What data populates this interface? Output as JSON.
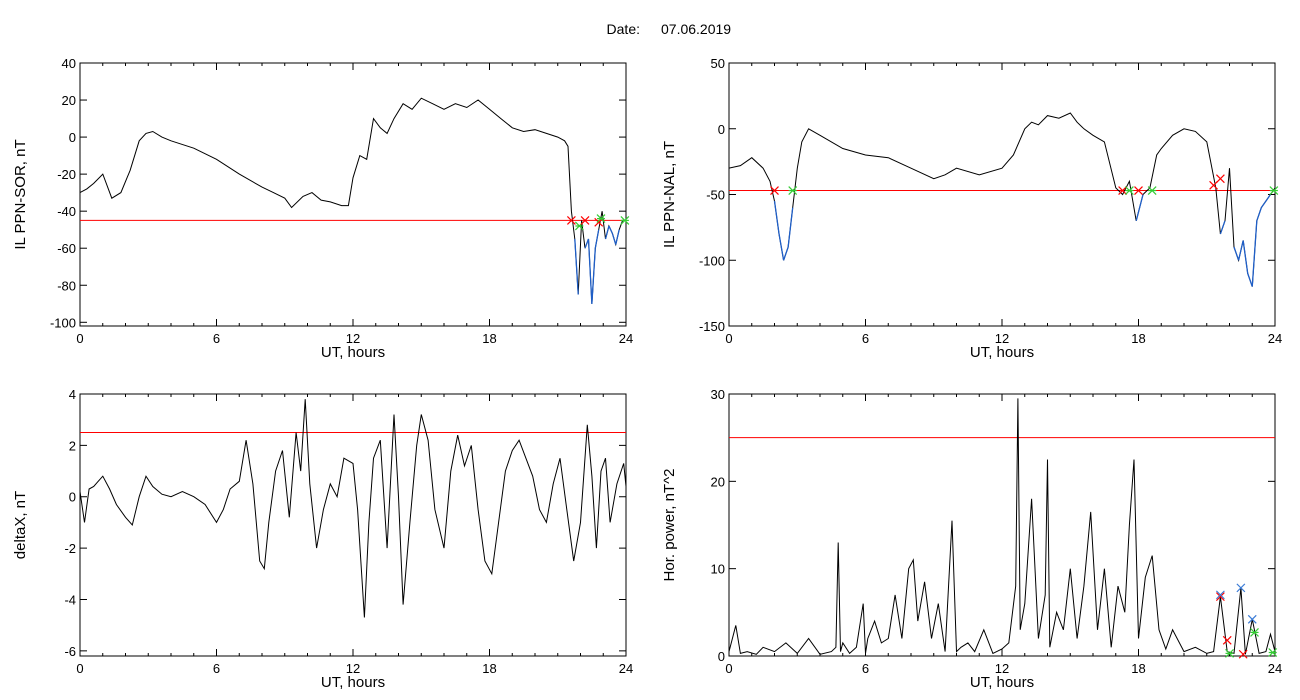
{
  "header": {
    "date_label": "Date:",
    "date_value": "07.06.2019"
  },
  "colors": {
    "trace": "#000000",
    "threshold": "#ff0000",
    "below": "#1f5fc8",
    "cross": "#ff0000",
    "exit": "#33cc33",
    "peak": "#3b7bd6"
  },
  "chart_data": [
    {
      "id": "p1",
      "type": "line",
      "xlabel": "UT, hours",
      "ylabel": "IL PPN-SOR, nT",
      "xlim": [
        0,
        24
      ],
      "ylim": [
        -102,
        40
      ],
      "xticks": [
        0,
        6,
        12,
        18,
        24
      ],
      "yticks": [
        -100,
        -80,
        -60,
        -40,
        -20,
        0,
        20,
        40
      ],
      "threshold": -45,
      "series": [
        {
          "x": [
            0,
            0.3,
            0.6,
            1.0,
            1.4,
            1.8,
            2.2,
            2.6,
            2.9,
            3.2,
            3.6,
            4.0,
            5.0,
            6.0,
            7.0,
            8.0,
            8.5,
            9.0,
            9.3,
            9.8,
            10.2,
            10.6,
            11.0,
            11.5,
            11.8,
            12.0,
            12.3,
            12.6,
            12.9,
            13.2,
            13.5,
            13.8,
            14.2,
            14.6,
            15.0,
            15.5,
            16.0,
            16.5,
            17.0,
            17.5,
            18.0,
            18.5,
            19.0,
            19.5,
            20.0,
            20.5,
            21.0,
            21.3,
            21.45,
            21.6,
            21.75,
            21.9,
            22.05,
            22.2,
            22.35,
            22.5,
            22.65,
            22.8,
            22.95,
            23.1,
            23.25,
            23.4,
            23.55,
            23.7,
            23.85,
            24.0
          ],
          "y": [
            -30,
            -28,
            -25,
            -20,
            -33,
            -30,
            -18,
            -2,
            2,
            3,
            0,
            -2,
            -6,
            -12,
            -20,
            -27,
            -30,
            -33,
            -38,
            -32,
            -30,
            -34,
            -35,
            -37,
            -37,
            -22,
            -10,
            -12,
            10,
            5,
            2,
            10,
            18,
            15,
            21,
            18,
            15,
            18,
            16,
            20,
            15,
            10,
            5,
            3,
            4,
            2,
            0,
            -2,
            -5,
            -40,
            -55,
            -85,
            -45,
            -60,
            -55,
            -90,
            -60,
            -50,
            -40,
            -55,
            -48,
            -52,
            -58,
            -50,
            -45,
            -45
          ]
        }
      ],
      "markers": [
        {
          "x": 21.6,
          "y": -45,
          "kind": "cross"
        },
        {
          "x": 21.95,
          "y": -48,
          "kind": "exit"
        },
        {
          "x": 22.2,
          "y": -45,
          "kind": "cross"
        },
        {
          "x": 22.8,
          "y": -46,
          "kind": "cross"
        },
        {
          "x": 22.9,
          "y": -44,
          "kind": "exit"
        },
        {
          "x": 23.95,
          "y": -45,
          "kind": "exit"
        }
      ]
    },
    {
      "id": "p2",
      "type": "line",
      "xlabel": "UT, hours",
      "ylabel": "IL PPN-NAL, nT",
      "xlim": [
        0,
        24
      ],
      "ylim": [
        -150,
        50
      ],
      "xticks": [
        0,
        6,
        12,
        18,
        24
      ],
      "yticks": [
        -150,
        -100,
        -50,
        0,
        50
      ],
      "threshold": -47,
      "series": [
        {
          "x": [
            0,
            0.5,
            1.0,
            1.5,
            1.8,
            2.0,
            2.2,
            2.4,
            2.6,
            2.8,
            3.0,
            3.2,
            3.5,
            4.0,
            5.0,
            6.0,
            7.0,
            8.0,
            9.0,
            9.5,
            10.0,
            11.0,
            12.0,
            12.5,
            13.0,
            13.3,
            13.6,
            14.0,
            14.5,
            15.0,
            15.3,
            15.6,
            16.0,
            16.5,
            17.0,
            17.3,
            17.6,
            17.9,
            18.2,
            18.5,
            18.8,
            19.0,
            19.5,
            20.0,
            20.5,
            21.0,
            21.4,
            21.6,
            21.8,
            22.0,
            22.2,
            22.4,
            22.6,
            22.8,
            23.0,
            23.2,
            23.4,
            23.6,
            23.8,
            24.0
          ],
          "y": [
            -30,
            -28,
            -22,
            -30,
            -40,
            -55,
            -80,
            -100,
            -90,
            -60,
            -30,
            -10,
            0,
            -5,
            -15,
            -20,
            -22,
            -30,
            -38,
            -35,
            -30,
            -35,
            -30,
            -20,
            0,
            5,
            3,
            10,
            8,
            12,
            5,
            0,
            -5,
            -10,
            -45,
            -50,
            -40,
            -70,
            -50,
            -45,
            -20,
            -15,
            -5,
            0,
            -2,
            -10,
            -45,
            -80,
            -70,
            -30,
            -90,
            -100,
            -85,
            -110,
            -120,
            -70,
            -60,
            -55,
            -50,
            -45
          ]
        }
      ],
      "markers": [
        {
          "x": 2.0,
          "y": -47,
          "kind": "cross"
        },
        {
          "x": 2.8,
          "y": -47,
          "kind": "exit"
        },
        {
          "x": 17.3,
          "y": -47,
          "kind": "cross"
        },
        {
          "x": 17.6,
          "y": -47,
          "kind": "exit"
        },
        {
          "x": 18.0,
          "y": -47,
          "kind": "cross"
        },
        {
          "x": 18.6,
          "y": -47,
          "kind": "exit"
        },
        {
          "x": 21.3,
          "y": -43,
          "kind": "cross"
        },
        {
          "x": 21.6,
          "y": -38,
          "kind": "cross"
        },
        {
          "x": 23.95,
          "y": -47,
          "kind": "exit"
        }
      ]
    },
    {
      "id": "p3",
      "type": "line",
      "xlabel": "UT, hours",
      "ylabel": "deltaX, nT",
      "xlim": [
        0,
        24
      ],
      "ylim": [
        -6.2,
        4
      ],
      "xticks": [
        0,
        6,
        12,
        18,
        24
      ],
      "yticks": [
        -6,
        -4,
        -2,
        0,
        2,
        4
      ],
      "threshold": 2.5,
      "series": [
        {
          "x": [
            0,
            0.2,
            0.4,
            0.6,
            0.8,
            1.0,
            1.3,
            1.6,
            2.0,
            2.3,
            2.6,
            2.9,
            3.2,
            3.6,
            4.0,
            4.5,
            5.0,
            5.5,
            6.0,
            6.3,
            6.6,
            7.0,
            7.3,
            7.6,
            7.9,
            8.1,
            8.3,
            8.6,
            8.9,
            9.2,
            9.5,
            9.7,
            9.9,
            10.1,
            10.4,
            10.7,
            11.0,
            11.3,
            11.6,
            12.0,
            12.2,
            12.5,
            12.7,
            12.9,
            13.2,
            13.5,
            13.8,
            14.0,
            14.2,
            14.5,
            14.8,
            15.0,
            15.3,
            15.6,
            16.0,
            16.3,
            16.6,
            16.9,
            17.2,
            17.5,
            17.8,
            18.1,
            18.4,
            18.7,
            19.0,
            19.3,
            19.6,
            19.9,
            20.2,
            20.5,
            20.8,
            21.1,
            21.4,
            21.7,
            22.0,
            22.3,
            22.5,
            22.7,
            22.9,
            23.1,
            23.3,
            23.6,
            23.9,
            24.0
          ],
          "y": [
            0.2,
            -1.0,
            0.3,
            0.4,
            0.6,
            0.8,
            0.3,
            -0.3,
            -0.8,
            -1.1,
            0.0,
            0.8,
            0.4,
            0.1,
            0.0,
            0.2,
            0.0,
            -0.3,
            -1.0,
            -0.5,
            0.3,
            0.6,
            2.2,
            0.5,
            -2.5,
            -2.8,
            -1.0,
            1.0,
            1.8,
            -0.8,
            2.5,
            1.0,
            3.8,
            0.5,
            -2.0,
            -0.5,
            0.5,
            0.0,
            1.5,
            1.3,
            -0.5,
            -4.7,
            -1.0,
            1.5,
            2.2,
            -2.0,
            3.2,
            0.0,
            -4.2,
            -1.0,
            2.0,
            3.2,
            2.2,
            -0.5,
            -2.0,
            1.0,
            2.4,
            1.2,
            2.0,
            -0.5,
            -2.5,
            -3.0,
            -1.0,
            1.0,
            1.8,
            2.2,
            1.5,
            0.8,
            -0.5,
            -1.0,
            0.5,
            1.5,
            -0.5,
            -2.5,
            -1.0,
            2.8,
            0.8,
            -2.0,
            1.0,
            1.5,
            -1.0,
            0.5,
            1.3,
            0.4
          ]
        }
      ],
      "markers": []
    },
    {
      "id": "p4",
      "type": "line",
      "xlabel": "UT, hours",
      "ylabel": "Hor. power, nT^2",
      "xlim": [
        0,
        24
      ],
      "ylim": [
        0,
        30
      ],
      "xticks": [
        0,
        6,
        12,
        18,
        24
      ],
      "yticks": [
        0,
        10,
        20,
        30
      ],
      "threshold": 25,
      "series": [
        {
          "x": [
            0,
            0.3,
            0.5,
            0.8,
            1.2,
            1.5,
            2.0,
            2.5,
            3.0,
            3.5,
            4.0,
            4.5,
            4.7,
            4.8,
            4.9,
            5.0,
            5.3,
            5.6,
            5.9,
            6.0,
            6.1,
            6.4,
            6.7,
            7.0,
            7.3,
            7.6,
            7.9,
            8.1,
            8.3,
            8.6,
            8.9,
            9.2,
            9.5,
            9.8,
            10.0,
            10.2,
            10.5,
            10.8,
            11.2,
            11.6,
            12.0,
            12.3,
            12.6,
            12.7,
            12.8,
            13.0,
            13.3,
            13.6,
            13.9,
            14.0,
            14.1,
            14.4,
            14.7,
            15.0,
            15.3,
            15.6,
            15.9,
            16.2,
            16.5,
            16.8,
            17.1,
            17.4,
            17.6,
            17.8,
            18.0,
            18.3,
            18.6,
            18.9,
            19.2,
            19.5,
            20.0,
            20.5,
            21.0,
            21.3,
            21.6,
            21.9,
            22.2,
            22.5,
            22.7,
            23.0,
            23.3,
            23.6,
            23.8,
            24.0
          ],
          "y": [
            0.5,
            3.5,
            0.3,
            0.5,
            0.2,
            1.0,
            0.5,
            1.5,
            0.3,
            2.0,
            0.2,
            0.5,
            1.0,
            13.0,
            0.5,
            1.5,
            0.3,
            1.0,
            6.0,
            0.3,
            2.0,
            4.0,
            1.5,
            2.0,
            7.0,
            2.0,
            10.0,
            11.0,
            4.0,
            8.5,
            2.0,
            6.0,
            0.5,
            15.5,
            0.5,
            1.0,
            1.5,
            0.5,
            3.0,
            0.3,
            0.8,
            1.5,
            8.0,
            29.5,
            3.0,
            6.0,
            18.0,
            2.0,
            7.0,
            22.5,
            1.0,
            5.0,
            3.0,
            10.0,
            2.0,
            8.0,
            16.5,
            3.0,
            10.0,
            1.0,
            8.0,
            5.0,
            15.0,
            22.5,
            2.0,
            9.0,
            11.5,
            3.0,
            0.8,
            3.0,
            0.5,
            1.0,
            0.3,
            0.5,
            6.8,
            0.5,
            0.3,
            7.8,
            0.2,
            4.2,
            0.3,
            0.5,
            2.5,
            0.5
          ]
        }
      ],
      "markers": [
        {
          "x": 21.6,
          "y": 6.8,
          "kind": "cross"
        },
        {
          "x": 21.6,
          "y": 7.0,
          "kind": "peak"
        },
        {
          "x": 21.9,
          "y": 1.8,
          "kind": "cross"
        },
        {
          "x": 22.0,
          "y": 0.3,
          "kind": "exit"
        },
        {
          "x": 22.5,
          "y": 7.8,
          "kind": "peak"
        },
        {
          "x": 22.6,
          "y": 0.2,
          "kind": "cross"
        },
        {
          "x": 23.0,
          "y": 4.2,
          "kind": "peak"
        },
        {
          "x": 23.1,
          "y": 2.7,
          "kind": "exit"
        },
        {
          "x": 23.9,
          "y": 0.4,
          "kind": "exit"
        }
      ]
    }
  ]
}
